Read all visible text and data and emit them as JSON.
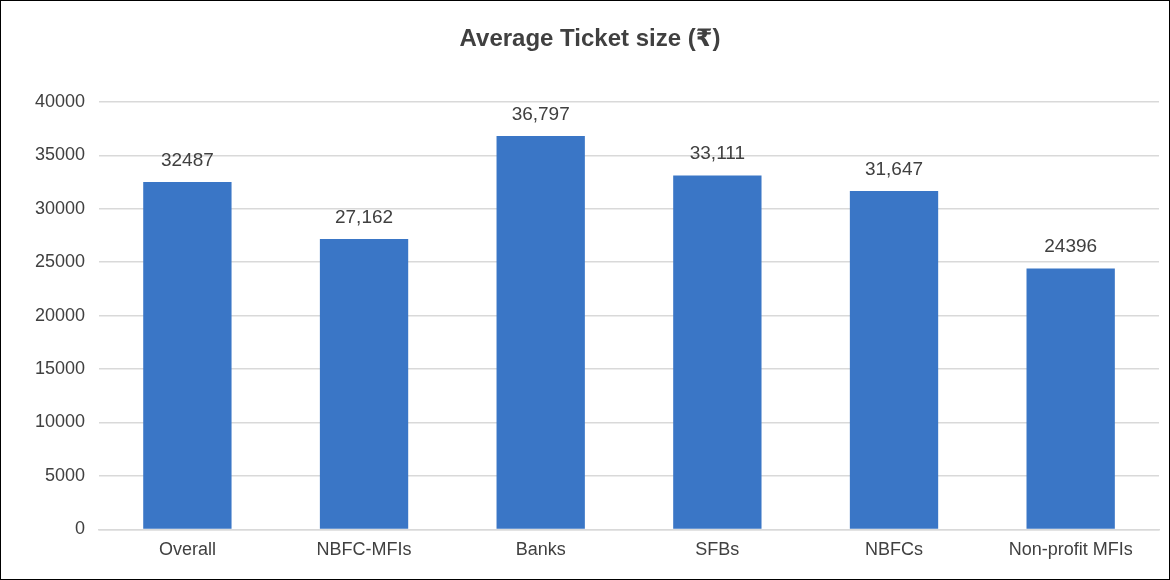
{
  "chart_data": {
    "type": "bar",
    "title": "Average Ticket size (₹)",
    "categories": [
      "Overall",
      "NBFC-MFIs",
      "Banks",
      "SFBs",
      "NBFCs",
      "Non-profit MFIs"
    ],
    "values": [
      32487,
      27162,
      36797,
      33111,
      31647,
      24396
    ],
    "value_labels": [
      "32487",
      "27,162",
      "36,797",
      "33,111",
      "31,647",
      "24396"
    ],
    "color": "#3a76c6",
    "ylim": [
      0,
      40000
    ],
    "yticks": [
      0,
      5000,
      10000,
      15000,
      20000,
      25000,
      30000,
      35000,
      40000
    ],
    "grid": "y",
    "legend": false
  }
}
